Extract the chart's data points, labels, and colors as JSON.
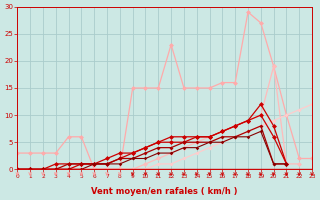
{
  "bg_color": "#cce8e4",
  "grid_color": "#aacccc",
  "dark_red": "#cc0000",
  "med_red": "#dd4444",
  "light_red": "#ff9999",
  "pale_red": "#ffbbbb",
  "xlabel": "Vent moyen/en rafales ( km/h )",
  "xlim": [
    0,
    23
  ],
  "ylim": [
    0,
    30
  ],
  "yticks": [
    0,
    5,
    10,
    15,
    20,
    25,
    30
  ],
  "xticks": [
    0,
    1,
    2,
    3,
    4,
    5,
    6,
    7,
    8,
    9,
    10,
    11,
    12,
    13,
    14,
    15,
    16,
    17,
    18,
    19,
    20,
    21,
    22,
    23
  ],
  "series": [
    {
      "x": [
        0,
        1,
        2,
        3,
        4,
        5,
        6,
        7,
        8,
        9,
        10,
        11,
        12,
        13,
        14,
        15,
        16,
        17,
        18,
        19,
        20,
        21,
        22,
        23
      ],
      "y": [
        3,
        3,
        3,
        3,
        6,
        6,
        0,
        0,
        0,
        15,
        15,
        15,
        23,
        15,
        15,
        15,
        16,
        16,
        29,
        27,
        19,
        10,
        2,
        2
      ],
      "color": "#ffaaaa",
      "lw": 0.9,
      "ms": 2.5,
      "marker": "D"
    },
    {
      "x": [
        0,
        1,
        2,
        3,
        4,
        5,
        6,
        7,
        8,
        9,
        10,
        11,
        12,
        13,
        14,
        15,
        16,
        17,
        18,
        19,
        20,
        21,
        22
      ],
      "y": [
        0,
        0,
        0,
        0,
        0,
        0,
        0,
        0,
        0,
        0,
        1,
        2,
        3,
        4,
        5,
        6,
        7,
        8,
        9,
        10,
        19,
        1,
        1
      ],
      "color": "#ffbbbb",
      "lw": 0.9,
      "ms": 2.5,
      "marker": "D"
    },
    {
      "x": [
        0,
        1,
        2,
        3,
        4,
        5,
        6,
        7,
        8,
        9,
        10,
        11,
        12,
        13,
        14,
        15,
        16,
        17,
        18,
        19,
        20,
        21,
        22,
        23
      ],
      "y": [
        0,
        0,
        0,
        0,
        0,
        0,
        0,
        0,
        0,
        0,
        0,
        1,
        1,
        2,
        3,
        4,
        5,
        6,
        7,
        8,
        9,
        10,
        11,
        12
      ],
      "color": "#ffcccc",
      "lw": 0.9,
      "ms": 2.0,
      "marker": "D"
    },
    {
      "x": [
        0,
        1,
        2,
        3,
        4,
        5,
        6,
        7,
        8,
        9,
        10,
        11,
        12,
        13,
        14,
        15,
        16,
        17,
        18,
        19,
        20,
        21
      ],
      "y": [
        0,
        0,
        0,
        0,
        0,
        1,
        1,
        1,
        2,
        3,
        4,
        5,
        6,
        6,
        6,
        6,
        7,
        8,
        9,
        12,
        8,
        1
      ],
      "color": "#cc0000",
      "lw": 0.9,
      "ms": 2.5,
      "marker": "D"
    },
    {
      "x": [
        0,
        1,
        2,
        3,
        4,
        5,
        6,
        7,
        8,
        9,
        10,
        11,
        12,
        13,
        14,
        15,
        16,
        17,
        18,
        19,
        20,
        21
      ],
      "y": [
        0,
        0,
        0,
        1,
        1,
        1,
        1,
        2,
        3,
        3,
        4,
        5,
        5,
        5,
        6,
        6,
        7,
        8,
        9,
        10,
        6,
        1
      ],
      "color": "#cc0000",
      "lw": 0.9,
      "ms": 2.5,
      "marker": "D"
    },
    {
      "x": [
        0,
        1,
        2,
        3,
        4,
        5,
        6,
        7,
        8,
        9,
        10,
        11,
        12,
        13,
        14,
        15,
        16,
        17,
        18,
        19,
        20,
        21
      ],
      "y": [
        0,
        0,
        0,
        0,
        1,
        1,
        1,
        1,
        2,
        2,
        3,
        4,
        4,
        5,
        5,
        5,
        6,
        6,
        7,
        8,
        1,
        1
      ],
      "color": "#aa0000",
      "lw": 0.9,
      "ms": 2.0,
      "marker": "D"
    },
    {
      "x": [
        0,
        1,
        2,
        3,
        4,
        5,
        6,
        7,
        8,
        9,
        10,
        11,
        12,
        13,
        14,
        15,
        16,
        17,
        18,
        19,
        20,
        21
      ],
      "y": [
        0,
        0,
        0,
        0,
        0,
        0,
        1,
        1,
        1,
        2,
        2,
        3,
        3,
        4,
        4,
        5,
        5,
        6,
        6,
        7,
        1,
        1
      ],
      "color": "#880000",
      "lw": 0.8,
      "ms": 1.8,
      "marker": "D"
    }
  ],
  "arrows": {
    "xs_left": [
      0,
      1,
      2,
      3,
      4,
      5,
      6,
      7,
      8
    ],
    "xs_right": [
      9,
      10,
      11,
      12,
      13,
      14,
      15,
      16,
      17,
      18,
      19,
      20,
      21,
      22,
      23
    ],
    "color_left": "#ff9999",
    "color_right": "#cc0000"
  }
}
